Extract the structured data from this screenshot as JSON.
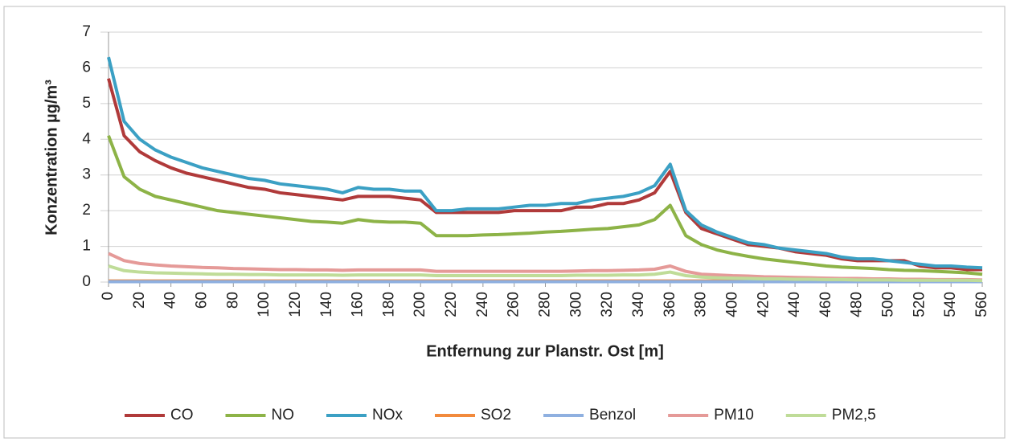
{
  "chart_data": {
    "type": "line",
    "y_label": "Konzentration µg/m³",
    "x_label": "Entfernung zur Planstr. Ost [m]",
    "x": [
      0,
      10,
      20,
      30,
      40,
      50,
      60,
      70,
      80,
      90,
      100,
      110,
      120,
      130,
      140,
      150,
      160,
      170,
      180,
      190,
      200,
      210,
      220,
      230,
      240,
      250,
      260,
      270,
      280,
      290,
      300,
      310,
      320,
      330,
      340,
      350,
      360,
      370,
      380,
      390,
      400,
      410,
      420,
      430,
      440,
      450,
      460,
      470,
      480,
      490,
      500,
      510,
      520,
      530,
      540,
      550,
      560
    ],
    "xlim": [
      0,
      560
    ],
    "xticks": [
      0,
      20,
      40,
      60,
      80,
      100,
      120,
      140,
      160,
      180,
      200,
      220,
      240,
      260,
      280,
      300,
      320,
      340,
      360,
      380,
      400,
      420,
      440,
      460,
      480,
      500,
      520,
      540,
      560
    ],
    "ylim": [
      0,
      7
    ],
    "yticks": [
      0,
      1,
      2,
      3,
      4,
      5,
      6,
      7
    ],
    "grid": true,
    "legend": "bottom",
    "series": [
      {
        "name": "CO",
        "color": "#b03a3a",
        "values": [
          5.7,
          4.1,
          3.65,
          3.4,
          3.2,
          3.05,
          2.95,
          2.85,
          2.75,
          2.65,
          2.6,
          2.5,
          2.45,
          2.4,
          2.35,
          2.3,
          2.4,
          2.4,
          2.4,
          2.35,
          2.3,
          1.95,
          1.95,
          1.95,
          1.95,
          1.95,
          2.0,
          2.0,
          2.0,
          2.0,
          2.1,
          2.1,
          2.2,
          2.2,
          2.3,
          2.5,
          3.1,
          1.95,
          1.5,
          1.35,
          1.2,
          1.05,
          1.0,
          0.95,
          0.85,
          0.8,
          0.75,
          0.65,
          0.6,
          0.6,
          0.6,
          0.6,
          0.45,
          0.4,
          0.4,
          0.35,
          0.35
        ]
      },
      {
        "name": "NO",
        "color": "#8db347",
        "values": [
          4.1,
          2.95,
          2.6,
          2.4,
          2.3,
          2.2,
          2.1,
          2.0,
          1.95,
          1.9,
          1.85,
          1.8,
          1.75,
          1.7,
          1.68,
          1.65,
          1.75,
          1.7,
          1.68,
          1.68,
          1.65,
          1.3,
          1.3,
          1.3,
          1.32,
          1.33,
          1.35,
          1.37,
          1.4,
          1.42,
          1.45,
          1.48,
          1.5,
          1.55,
          1.6,
          1.75,
          2.15,
          1.3,
          1.05,
          0.9,
          0.8,
          0.72,
          0.65,
          0.6,
          0.55,
          0.5,
          0.45,
          0.42,
          0.4,
          0.38,
          0.35,
          0.33,
          0.32,
          0.3,
          0.28,
          0.26,
          0.22
        ]
      },
      {
        "name": "NOx",
        "color": "#3ba0c4",
        "values": [
          6.3,
          4.5,
          4.0,
          3.7,
          3.5,
          3.35,
          3.2,
          3.1,
          3.0,
          2.9,
          2.85,
          2.75,
          2.7,
          2.65,
          2.6,
          2.5,
          2.65,
          2.6,
          2.6,
          2.55,
          2.55,
          2.0,
          2.0,
          2.05,
          2.05,
          2.05,
          2.1,
          2.15,
          2.15,
          2.2,
          2.2,
          2.3,
          2.35,
          2.4,
          2.5,
          2.7,
          3.3,
          2.0,
          1.6,
          1.4,
          1.25,
          1.1,
          1.05,
          0.95,
          0.9,
          0.85,
          0.8,
          0.7,
          0.65,
          0.65,
          0.6,
          0.55,
          0.5,
          0.45,
          0.45,
          0.42,
          0.4
        ]
      },
      {
        "name": "SO2",
        "color": "#f28a3c",
        "values": [
          0.03,
          0.03,
          0.03,
          0.03,
          0.03,
          0.03,
          0.03,
          0.03,
          0.03,
          0.03,
          0.03,
          0.03,
          0.03,
          0.03,
          0.03,
          0.03,
          0.03,
          0.03,
          0.03,
          0.03,
          0.03,
          0.03,
          0.03,
          0.03,
          0.03,
          0.03,
          0.03,
          0.03,
          0.03,
          0.03,
          0.03,
          0.03,
          0.03,
          0.03,
          0.03,
          0.03,
          0.03,
          0.03,
          0.03,
          0.03,
          0.03,
          0.03,
          0.03,
          0.03,
          0.03,
          0.03,
          0.03,
          0.03,
          0.03,
          0.03,
          0.03,
          0.03,
          0.03,
          0.03,
          0.03,
          0.03,
          0.03
        ]
      },
      {
        "name": "Benzol",
        "color": "#8fb0e0",
        "values": [
          0.01,
          0.01,
          0.01,
          0.01,
          0.01,
          0.01,
          0.01,
          0.01,
          0.01,
          0.01,
          0.01,
          0.01,
          0.01,
          0.01,
          0.01,
          0.01,
          0.01,
          0.01,
          0.01,
          0.01,
          0.01,
          0.01,
          0.01,
          0.01,
          0.01,
          0.01,
          0.01,
          0.01,
          0.01,
          0.01,
          0.01,
          0.01,
          0.01,
          0.01,
          0.01,
          0.01,
          0.01,
          0.01,
          0.01,
          0.01,
          0.01,
          0.01,
          0.01,
          0.01,
          0.01,
          0.01,
          0.01,
          0.01,
          0.01,
          0.01,
          0.01,
          0.01,
          0.01,
          0.01,
          0.01,
          0.01,
          0.01
        ]
      },
      {
        "name": "PM10",
        "color": "#e59a98",
        "values": [
          0.8,
          0.6,
          0.52,
          0.48,
          0.45,
          0.43,
          0.41,
          0.4,
          0.38,
          0.37,
          0.36,
          0.35,
          0.35,
          0.34,
          0.34,
          0.33,
          0.34,
          0.34,
          0.34,
          0.34,
          0.34,
          0.3,
          0.3,
          0.3,
          0.3,
          0.3,
          0.3,
          0.3,
          0.3,
          0.3,
          0.31,
          0.32,
          0.32,
          0.33,
          0.34,
          0.36,
          0.45,
          0.3,
          0.22,
          0.2,
          0.18,
          0.17,
          0.15,
          0.14,
          0.13,
          0.12,
          0.11,
          0.1,
          0.1,
          0.09,
          0.09,
          0.08,
          0.08,
          0.07,
          0.07,
          0.07,
          0.06
        ]
      },
      {
        "name": "PM2,5",
        "color": "#bfdc98",
        "values": [
          0.45,
          0.32,
          0.28,
          0.26,
          0.25,
          0.24,
          0.23,
          0.22,
          0.22,
          0.21,
          0.21,
          0.2,
          0.2,
          0.2,
          0.2,
          0.19,
          0.2,
          0.2,
          0.2,
          0.2,
          0.2,
          0.18,
          0.18,
          0.18,
          0.18,
          0.18,
          0.18,
          0.18,
          0.18,
          0.18,
          0.19,
          0.19,
          0.19,
          0.2,
          0.2,
          0.22,
          0.28,
          0.18,
          0.14,
          0.12,
          0.11,
          0.1,
          0.09,
          0.09,
          0.08,
          0.08,
          0.07,
          0.07,
          0.06,
          0.06,
          0.06,
          0.05,
          0.05,
          0.05,
          0.05,
          0.05,
          0.04
        ]
      }
    ]
  }
}
